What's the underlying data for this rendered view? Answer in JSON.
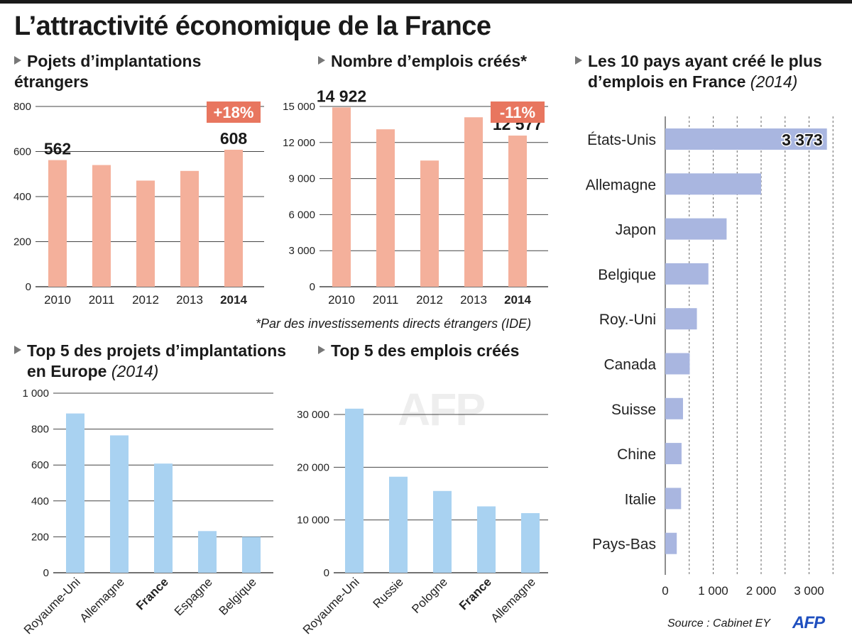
{
  "title": "L’attractivité économique de la France",
  "sections": {
    "s1": {
      "line1": "Pojets d’implantations",
      "line2": "étrangers"
    },
    "s2": {
      "line1": "Nombre d’emplois créés*"
    },
    "s3": {
      "line1": "Les 10 pays ayant créé le plus",
      "line2": "d’emplois en France",
      "year": "(2014)"
    },
    "s4": {
      "line1": "Top 5 des projets d’implantations",
      "line2": "en Europe",
      "year": "(2014)"
    },
    "s5": {
      "line1": "Top 5 des emplois créés"
    }
  },
  "footnote": "*Par des investissements directs étrangers (IDE)",
  "source": "Source : Cabinet EY",
  "logo": "AFP",
  "watermark": "AFP",
  "colors": {
    "salmon": "#f4b09b",
    "badge": "#e8765f",
    "blue": "#a9d2f1",
    "lavender": "#a9b6e0",
    "grid": "#444444"
  },
  "chart_data": [
    {
      "id": "c1",
      "type": "bar",
      "categories": [
        "2010",
        "2011",
        "2012",
        "2013",
        "2014"
      ],
      "values": [
        562,
        540,
        471,
        514,
        608
      ],
      "highlight": "2014",
      "ylim": [
        0,
        800
      ],
      "ticks": [
        {
          "v": 0,
          "l": "0"
        },
        {
          "v": 200,
          "l": "200"
        },
        {
          "v": 400,
          "l": "400"
        },
        {
          "v": 600,
          "l": "600"
        },
        {
          "v": 800,
          "l": "800"
        }
      ],
      "labels": [
        {
          "index": 0,
          "text": "562"
        },
        {
          "index": 4,
          "text": "608"
        }
      ],
      "badge": {
        "index": 4,
        "text": "+18%"
      },
      "grid": true
    },
    {
      "id": "c2",
      "type": "bar",
      "categories": [
        "2010",
        "2011",
        "2012",
        "2013",
        "2014"
      ],
      "values": [
        14922,
        13100,
        10500,
        14100,
        12577
      ],
      "highlight": "2014",
      "ylim": [
        0,
        15000
      ],
      "ticks": [
        {
          "v": 0,
          "l": "0"
        },
        {
          "v": 3000,
          "l": "3 000"
        },
        {
          "v": 6000,
          "l": "6 000"
        },
        {
          "v": 9000,
          "l": "9 000"
        },
        {
          "v": 12000,
          "l": "12 000"
        },
        {
          "v": 15000,
          "l": "15 000"
        }
      ],
      "labels": [
        {
          "index": 0,
          "text": "14 922"
        },
        {
          "index": 4,
          "text": "12 577"
        }
      ],
      "badge": {
        "index": 4,
        "text": "-11%"
      },
      "grid": true
    },
    {
      "id": "c3",
      "type": "bar",
      "categories": [
        "Royaume-Uni",
        "Allemagne",
        "France",
        "Espagne",
        "Belgique"
      ],
      "values": [
        887,
        765,
        608,
        232,
        200
      ],
      "highlight": "France",
      "ylim": [
        0,
        1000
      ],
      "ticks": [
        {
          "v": 0,
          "l": "0"
        },
        {
          "v": 200,
          "l": "200"
        },
        {
          "v": 400,
          "l": "400"
        },
        {
          "v": 600,
          "l": "600"
        },
        {
          "v": 800,
          "l": "800"
        },
        {
          "v": 1000,
          "l": "1 000"
        }
      ],
      "grid": true
    },
    {
      "id": "c4",
      "type": "bar",
      "categories": [
        "Royaume-Uni",
        "Russie",
        "Pologne",
        "France",
        "Allemagne"
      ],
      "values": [
        31100,
        18200,
        15500,
        12577,
        11300
      ],
      "highlight": "France",
      "ylim": [
        0,
        30000
      ],
      "ticks": [
        {
          "v": 0,
          "l": "0"
        },
        {
          "v": 10000,
          "l": "10 000"
        },
        {
          "v": 20000,
          "l": "20 000"
        },
        {
          "v": 30000,
          "l": "30 000"
        }
      ],
      "grid": true
    },
    {
      "id": "c5",
      "type": "bar",
      "orientation": "horizontal",
      "categories": [
        "États-Unis",
        "Allemagne",
        "Japon",
        "Belgique",
        "Roy.-Uni",
        "Canada",
        "Suisse",
        "Chine",
        "Italie",
        "Pays-Bas"
      ],
      "values": [
        3373,
        2000,
        1280,
        900,
        660,
        510,
        370,
        340,
        330,
        240
      ],
      "xlim": [
        0,
        3400
      ],
      "ticks": [
        {
          "v": 0,
          "l": "0"
        },
        {
          "v": 1000,
          "l": "1 000"
        },
        {
          "v": 2000,
          "l": "2 000"
        },
        {
          "v": 3000,
          "l": "3 000"
        }
      ],
      "labels": [
        {
          "index": 0,
          "text": "3 373"
        }
      ],
      "grid": true
    }
  ]
}
